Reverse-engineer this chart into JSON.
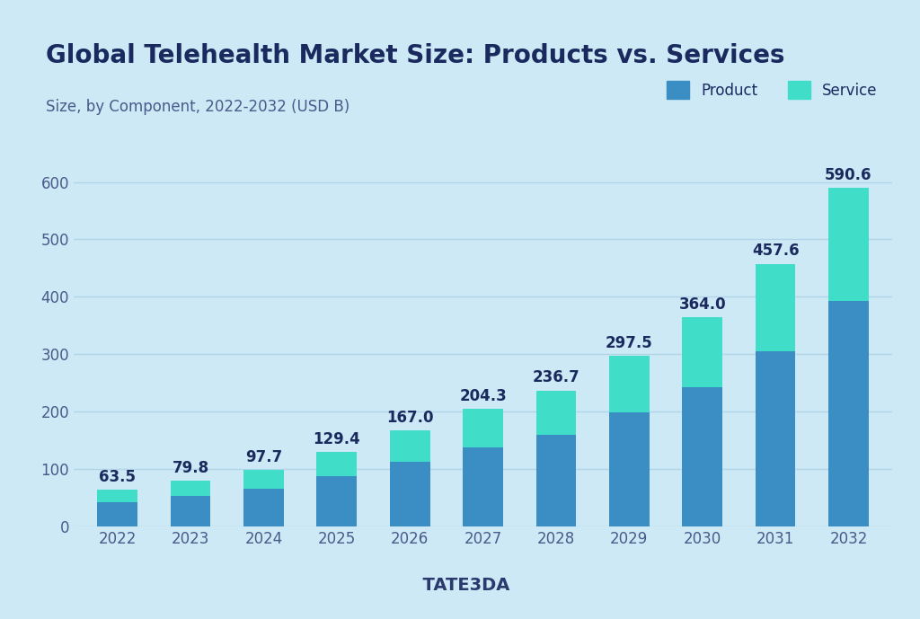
{
  "title": "Global Telehealth Market Size: Products vs. Services",
  "subtitle": "Size, by Component, 2022-2032 (USD B)",
  "background_color": "#cce9f5",
  "years": [
    2022,
    2023,
    2024,
    2025,
    2026,
    2027,
    2028,
    2029,
    2030,
    2031,
    2032
  ],
  "totals": [
    63.5,
    79.8,
    97.7,
    129.4,
    167.0,
    204.3,
    236.7,
    297.5,
    364.0,
    457.6,
    590.6
  ],
  "product_values": [
    42.0,
    53.0,
    65.0,
    87.0,
    112.0,
    137.0,
    158.5,
    198.0,
    242.0,
    305.0,
    393.0
  ],
  "service_values": [
    21.5,
    26.8,
    32.7,
    42.4,
    55.0,
    67.3,
    78.2,
    99.5,
    122.0,
    152.6,
    197.6
  ],
  "product_color": "#3b8ec4",
  "service_color": "#40ddc8",
  "title_color": "#1a2a5e",
  "subtitle_color": "#4a5a8a",
  "label_color": "#1a2a5e",
  "tick_color": "#4a5a8a",
  "grid_color": "#b0d4e8",
  "ylim": [
    0,
    680
  ],
  "yticks": [
    0,
    100,
    200,
    300,
    400,
    500,
    600
  ],
  "bar_width": 0.55,
  "title_fontsize": 20,
  "subtitle_fontsize": 12,
  "legend_fontsize": 12,
  "tick_fontsize": 12,
  "label_fontsize": 12
}
